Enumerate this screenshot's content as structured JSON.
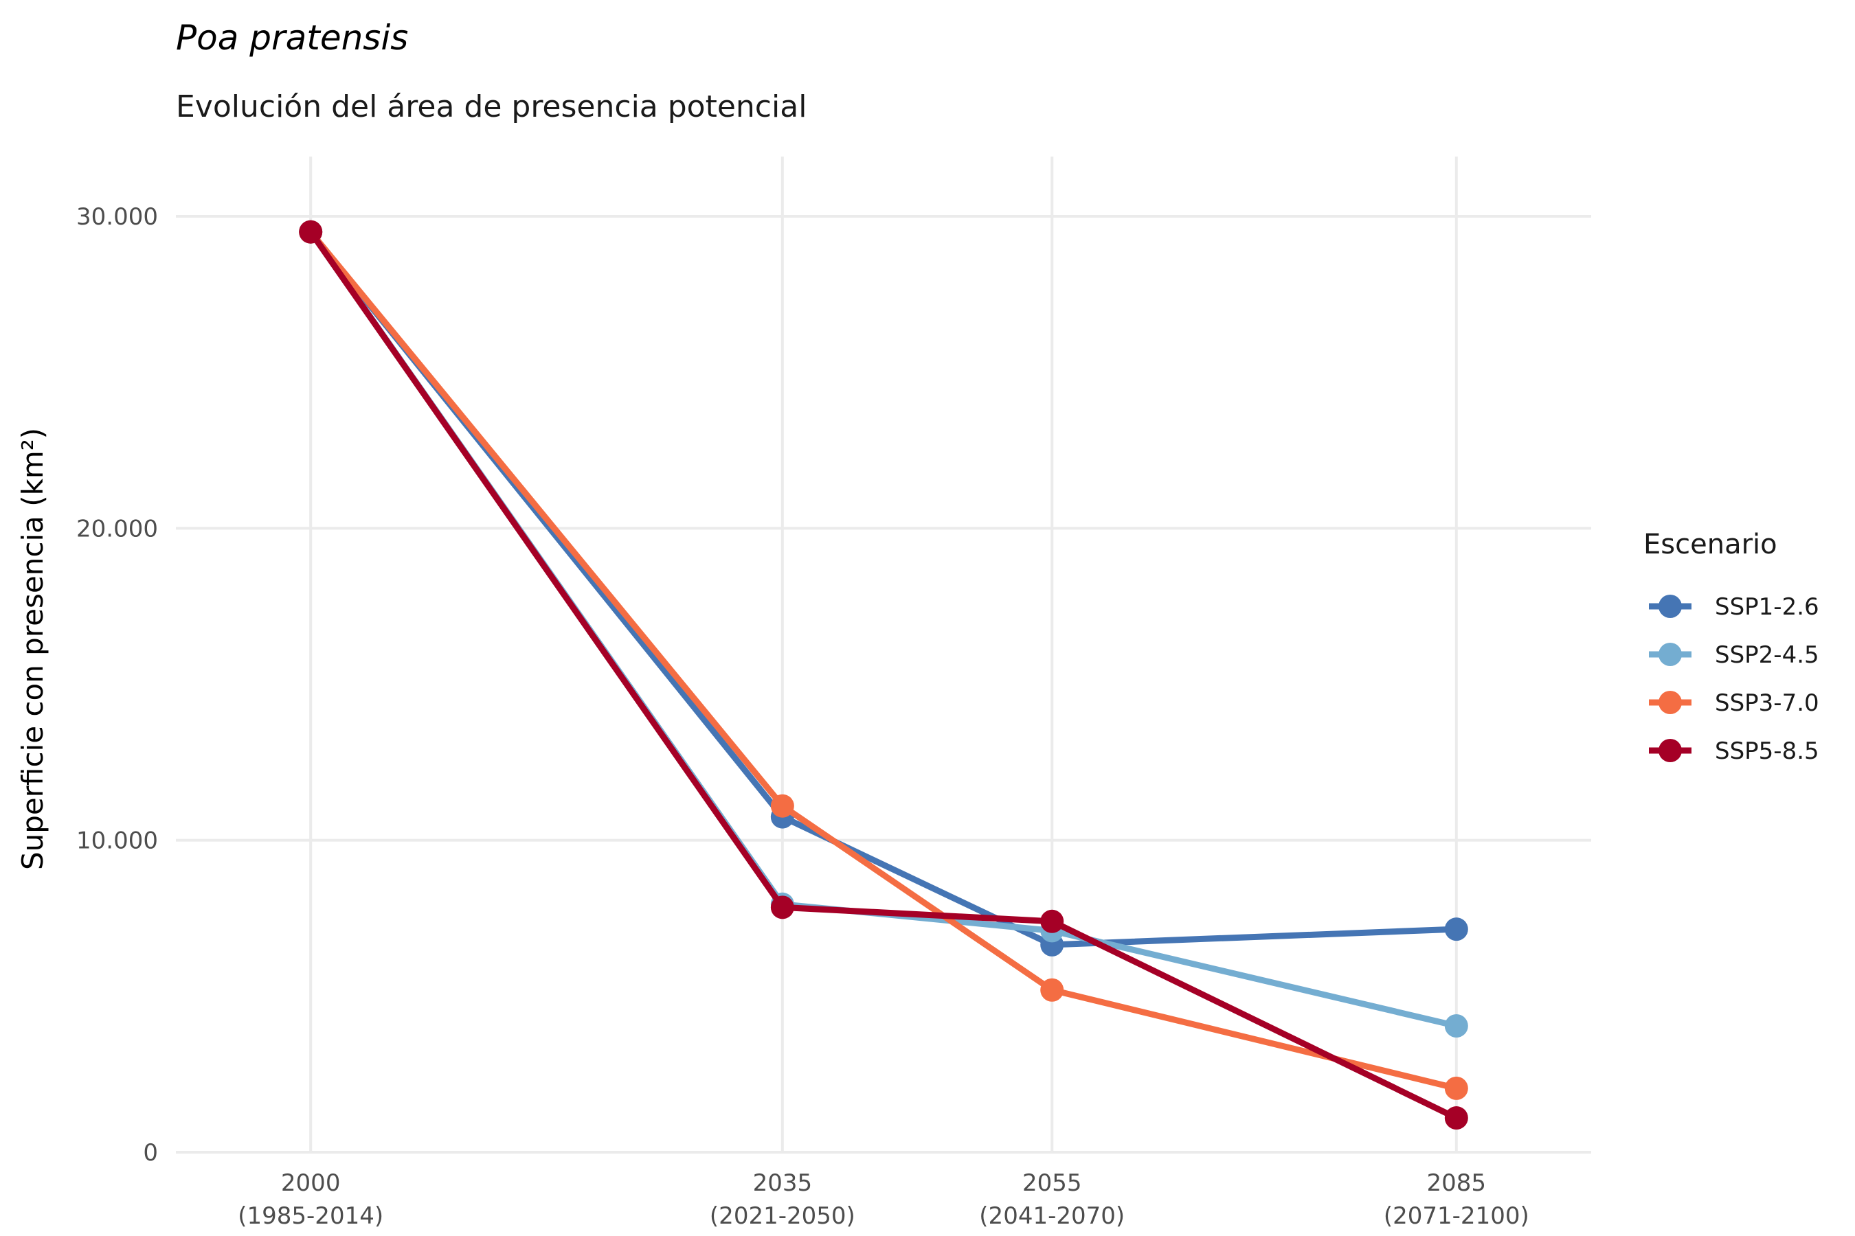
{
  "chart_data": {
    "type": "line",
    "title": "Poa pratensis",
    "subtitle": "Evolución del área de presencia potencial",
    "ylabel": "Superficie con presencia (km²)",
    "xlabel": "",
    "x": [
      2000,
      2035,
      2055,
      2085
    ],
    "x_tick_labels": [
      [
        "2000",
        "(1985-2014)"
      ],
      [
        "2035",
        "(2021-2050)"
      ],
      [
        "2055",
        "(2041-2070)"
      ],
      [
        "2085",
        "(2071-2100)"
      ]
    ],
    "xlim": [
      1990,
      2095
    ],
    "ylim": [
      0,
      30000
    ],
    "y_ticks": [
      0,
      10000,
      20000,
      30000
    ],
    "y_tick_labels": [
      "0",
      "10.000",
      "20.000",
      "30.000"
    ],
    "grid": true,
    "legend": {
      "title": "Escenario",
      "position": "right"
    },
    "series": [
      {
        "name": "SSP1-2.6",
        "color": "#4575b4",
        "values": [
          29500,
          10750,
          6650,
          7150
        ]
      },
      {
        "name": "SSP2-4.5",
        "color": "#74add1",
        "values": [
          29500,
          7950,
          7100,
          4050
        ]
      },
      {
        "name": "SSP3-7.0",
        "color": "#f46d43",
        "values": [
          29500,
          11100,
          5200,
          2050
        ]
      },
      {
        "name": "SSP5-8.5",
        "color": "#a50026",
        "values": [
          29500,
          7850,
          7400,
          1100
        ]
      }
    ]
  }
}
